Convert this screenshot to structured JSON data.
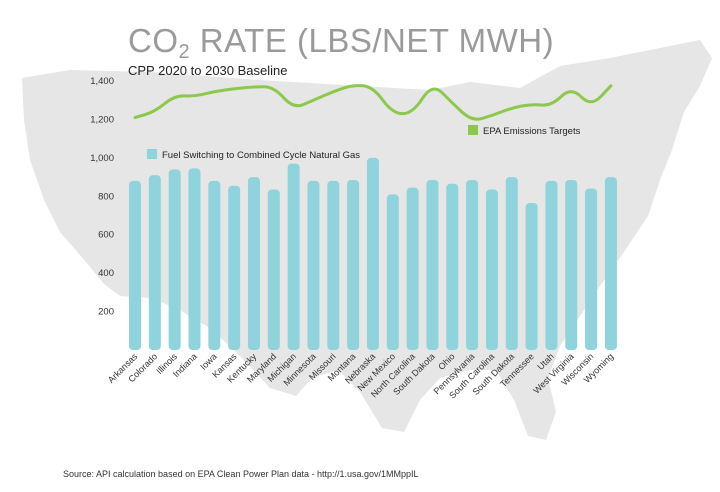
{
  "title_main": "CO",
  "title_sub": "2",
  "title_rest": " RATE (LBS/NET MWH)",
  "subtitle": "CPP 2020 to 2030 Baseline",
  "source": "Source: API calculation based on EPA Clean Power Plan data - http://1.usa.gov/1MMppIL",
  "colors": {
    "bar": "#8fd3dc",
    "line": "#8cc84b",
    "map": "#e6e6e6",
    "title": "#9a9a9a"
  },
  "chart_data": {
    "type": "bar",
    "title": "CO2 RATE (LBS/NET MWH)",
    "subtitle": "CPP 2020 to 2030 Baseline",
    "xlabel": "",
    "ylabel": "",
    "ylim": [
      0,
      1400
    ],
    "yticks": [
      "200",
      "400",
      "600",
      "800",
      "1,000",
      "1,200",
      "1,400"
    ],
    "categories": [
      "Arkansas",
      "Colorado",
      "Illinois",
      "Indiana",
      "Iowa",
      "Kansas",
      "Kentucky",
      "Maryland",
      "Michigan",
      "Minnesota",
      "Missouri",
      "Montana",
      "Nebraska",
      "New Mexico",
      "North Carolina",
      "South Dakota",
      "Ohio",
      "Pennsylvania",
      "South Carolina",
      "South Dakota",
      "Tennessee",
      "Utah",
      "West Virginia",
      "Wisconsin",
      "Wyoming"
    ],
    "series": [
      {
        "name": "Fuel Switching to Combined Cycle Natural Gas",
        "type": "bar",
        "values": [
          880,
          910,
          940,
          945,
          880,
          855,
          900,
          835,
          970,
          880,
          880,
          885,
          1000,
          810,
          845,
          885,
          865,
          885,
          835,
          900,
          765,
          880,
          885,
          840,
          900
        ]
      },
      {
        "name": "EPA Emissions Targets",
        "type": "line",
        "values": [
          1210,
          1240,
          1325,
          1320,
          1345,
          1360,
          1370,
          1370,
          1255,
          1300,
          1345,
          1380,
          1370,
          1230,
          1230,
          1390,
          1285,
          1190,
          1220,
          1260,
          1280,
          1270,
          1370,
          1265,
          1375
        ]
      }
    ],
    "legend": [
      "Fuel Switching to Combined Cycle Natural Gas",
      "EPA Emissions Targets"
    ]
  }
}
